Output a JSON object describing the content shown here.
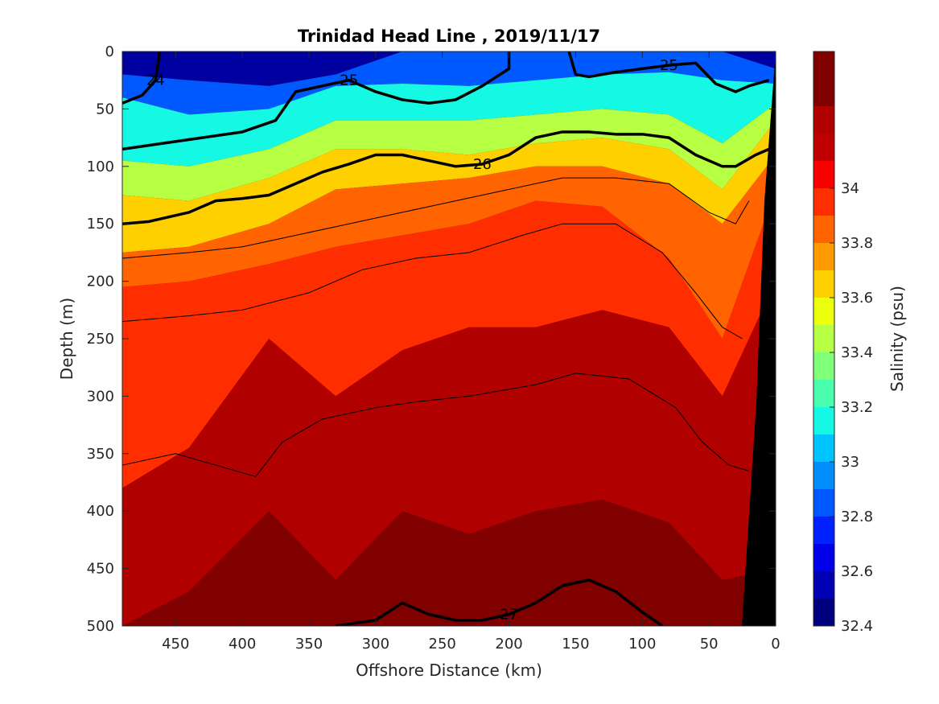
{
  "chart_data": {
    "type": "heatmap",
    "title": "Trinidad Head Line , 2019/11/17",
    "xlabel": "Offshore Distance (km)",
    "ylabel": "Depth (m)",
    "colorbar_label": "Salinity (psu)",
    "x_range": [
      490,
      0
    ],
    "x_reversed": true,
    "y_range": [
      0,
      500
    ],
    "y_reversed": true,
    "x_ticks": [
      450,
      400,
      350,
      300,
      250,
      200,
      150,
      100,
      50,
      0
    ],
    "y_ticks": [
      0,
      50,
      100,
      150,
      200,
      250,
      300,
      350,
      400,
      450,
      500
    ],
    "colorbar_range": [
      32.4,
      34.5
    ],
    "colorbar_ticks": [
      32.4,
      32.6,
      32.8,
      33,
      33.2,
      33.4,
      33.6,
      33.8,
      34
    ],
    "colorbar_levels": [
      {
        "min": 32.4,
        "max": 32.5,
        "color": "#00007f"
      },
      {
        "min": 32.5,
        "max": 32.6,
        "color": "#0000b5"
      },
      {
        "min": 32.6,
        "max": 32.7,
        "color": "#0000eb"
      },
      {
        "min": 32.7,
        "max": 32.8,
        "color": "#0022ff"
      },
      {
        "min": 32.8,
        "max": 32.9,
        "color": "#0058ff"
      },
      {
        "min": 32.9,
        "max": 33.0,
        "color": "#008eff"
      },
      {
        "min": 33.0,
        "max": 33.1,
        "color": "#00c4ff"
      },
      {
        "min": 33.1,
        "max": 33.2,
        "color": "#14f8e4"
      },
      {
        "min": 33.2,
        "max": 33.3,
        "color": "#4affae"
      },
      {
        "min": 33.3,
        "max": 33.4,
        "color": "#80ff78"
      },
      {
        "min": 33.4,
        "max": 33.5,
        "color": "#b6ff42"
      },
      {
        "min": 33.5,
        "max": 33.6,
        "color": "#ecff0c"
      },
      {
        "min": 33.6,
        "max": 33.7,
        "color": "#ffd000"
      },
      {
        "min": 33.7,
        "max": 33.8,
        "color": "#ff9a00"
      },
      {
        "min": 33.8,
        "max": 33.9,
        "color": "#ff6400"
      },
      {
        "min": 33.9,
        "max": 34.0,
        "color": "#ff2e00"
      },
      {
        "min": 34.0,
        "max": 34.1,
        "color": "#f60000"
      },
      {
        "min": 34.1,
        "max": 34.2,
        "color": "#c00000"
      },
      {
        "min": 34.2,
        "max": 34.3,
        "color": "#b00000"
      },
      {
        "min": 34.3,
        "max": 34.5,
        "color": "#800000"
      }
    ],
    "salinity_layers": [
      {
        "salinity": 32.55,
        "color": "#0000a0",
        "top": [
          0,
          0,
          0,
          0,
          0,
          0,
          0,
          0,
          0,
          0,
          0
        ],
        "bottom": [
          20,
          25,
          30,
          20,
          0,
          0,
          0,
          0,
          0,
          0,
          15
        ]
      },
      {
        "salinity": 32.85,
        "color": "#0058ff",
        "top": [
          20,
          25,
          30,
          20,
          0,
          0,
          0,
          0,
          0,
          0,
          15
        ],
        "bottom": [
          40,
          55,
          50,
          30,
          28,
          30,
          25,
          20,
          18,
          25,
          28
        ]
      },
      {
        "salinity": 33.15,
        "color": "#14f8e4",
        "top": [
          40,
          55,
          50,
          30,
          28,
          30,
          25,
          20,
          18,
          25,
          28
        ],
        "bottom": [
          95,
          100,
          85,
          60,
          60,
          60,
          55,
          50,
          55,
          80,
          45
        ]
      },
      {
        "salinity": 33.45,
        "color": "#b6ff42",
        "top": [
          95,
          100,
          85,
          60,
          60,
          60,
          55,
          50,
          55,
          80,
          45
        ],
        "bottom": [
          125,
          130,
          110,
          85,
          85,
          90,
          80,
          75,
          85,
          120,
          60
        ]
      },
      {
        "salinity": 33.65,
        "color": "#ffd000",
        "top": [
          125,
          130,
          110,
          85,
          85,
          90,
          80,
          75,
          85,
          120,
          60
        ],
        "bottom": [
          175,
          170,
          150,
          120,
          115,
          110,
          100,
          100,
          115,
          150,
          90
        ]
      },
      {
        "salinity": 33.85,
        "color": "#ff6400",
        "top": [
          175,
          170,
          150,
          120,
          115,
          110,
          100,
          100,
          115,
          150,
          90
        ],
        "bottom": [
          205,
          200,
          185,
          170,
          160,
          150,
          130,
          135,
          180,
          250,
          120
        ]
      },
      {
        "salinity": 33.95,
        "color": "#ff2e00",
        "top": [
          205,
          200,
          185,
          170,
          160,
          150,
          130,
          135,
          180,
          250,
          120
        ],
        "bottom": [
          380,
          345,
          250,
          300,
          260,
          240,
          240,
          225,
          240,
          300,
          200
        ]
      },
      {
        "salinity": 34.15,
        "color": "#b00000",
        "top": [
          380,
          345,
          250,
          300,
          260,
          240,
          240,
          225,
          240,
          300,
          200
        ],
        "bottom": [
          500,
          470,
          400,
          460,
          400,
          420,
          400,
          390,
          410,
          460,
          450
        ]
      },
      {
        "salinity": 34.35,
        "color": "#800000",
        "top": [
          500,
          470,
          400,
          460,
          400,
          420,
          400,
          390,
          410,
          460,
          450
        ],
        "bottom": [
          500,
          500,
          500,
          500,
          500,
          500,
          500,
          500,
          500,
          500,
          500
        ]
      }
    ],
    "layer_x": [
      490,
      440,
      380,
      330,
      280,
      230,
      180,
      130,
      80,
      40,
      0
    ],
    "isopycnals": [
      {
        "label": "24",
        "bold": true,
        "points": [
          [
            490,
            45
          ],
          [
            475,
            38
          ],
          [
            465,
            25
          ],
          [
            462,
            0
          ]
        ]
      },
      {
        "label": "25",
        "bold": true,
        "points": [
          [
            490,
            85
          ],
          [
            460,
            80
          ],
          [
            430,
            75
          ],
          [
            400,
            70
          ],
          [
            375,
            60
          ],
          [
            360,
            35
          ],
          [
            340,
            30
          ],
          [
            320,
            25
          ],
          [
            300,
            35
          ],
          [
            280,
            42
          ],
          [
            260,
            45
          ],
          [
            240,
            42
          ],
          [
            220,
            30
          ],
          [
            200,
            15
          ],
          [
            200,
            0
          ]
        ]
      },
      {
        "label": "25",
        "bold": true,
        "points": [
          [
            155,
            0
          ],
          [
            150,
            20
          ],
          [
            140,
            22
          ],
          [
            120,
            18
          ],
          [
            100,
            15
          ],
          [
            80,
            12
          ],
          [
            60,
            10
          ],
          [
            45,
            28
          ],
          [
            30,
            35
          ],
          [
            20,
            30
          ],
          [
            5,
            25
          ]
        ]
      },
      {
        "label": "26",
        "bold": true,
        "points": [
          [
            490,
            150
          ],
          [
            470,
            148
          ],
          [
            440,
            140
          ],
          [
            420,
            130
          ],
          [
            400,
            128
          ],
          [
            380,
            125
          ],
          [
            360,
            115
          ],
          [
            340,
            105
          ],
          [
            320,
            98
          ],
          [
            300,
            90
          ],
          [
            280,
            90
          ],
          [
            260,
            95
          ],
          [
            240,
            100
          ],
          [
            220,
            98
          ],
          [
            200,
            90
          ],
          [
            180,
            75
          ],
          [
            160,
            70
          ],
          [
            140,
            70
          ],
          [
            120,
            72
          ],
          [
            100,
            72
          ],
          [
            80,
            75
          ],
          [
            60,
            90
          ],
          [
            40,
            100
          ],
          [
            30,
            100
          ],
          [
            15,
            90
          ],
          [
            5,
            85
          ]
        ]
      },
      {
        "label": "27",
        "bold": true,
        "points": [
          [
            330,
            500
          ],
          [
            300,
            495
          ],
          [
            280,
            480
          ],
          [
            260,
            490
          ],
          [
            240,
            495
          ],
          [
            220,
            495
          ],
          [
            200,
            490
          ],
          [
            180,
            480
          ],
          [
            160,
            465
          ],
          [
            140,
            460
          ],
          [
            120,
            470
          ],
          [
            100,
            488
          ],
          [
            85,
            500
          ]
        ]
      }
    ],
    "thin_contours": [
      {
        "points": [
          [
            490,
            180
          ],
          [
            440,
            175
          ],
          [
            400,
            170
          ],
          [
            360,
            160
          ],
          [
            320,
            150
          ],
          [
            280,
            140
          ],
          [
            240,
            130
          ],
          [
            200,
            120
          ],
          [
            160,
            110
          ],
          [
            120,
            110
          ],
          [
            80,
            115
          ],
          [
            50,
            140
          ],
          [
            30,
            150
          ],
          [
            20,
            130
          ]
        ]
      },
      {
        "points": [
          [
            490,
            235
          ],
          [
            440,
            230
          ],
          [
            400,
            225
          ],
          [
            350,
            210
          ],
          [
            310,
            190
          ],
          [
            270,
            180
          ],
          [
            230,
            175
          ],
          [
            190,
            160
          ],
          [
            160,
            150
          ],
          [
            120,
            150
          ],
          [
            85,
            175
          ],
          [
            60,
            210
          ],
          [
            40,
            240
          ],
          [
            25,
            250
          ]
        ]
      },
      {
        "points": [
          [
            490,
            360
          ],
          [
            450,
            350
          ],
          [
            420,
            360
          ],
          [
            390,
            370
          ],
          [
            370,
            340
          ],
          [
            340,
            320
          ],
          [
            300,
            310
          ],
          [
            270,
            305
          ],
          [
            230,
            300
          ],
          [
            180,
            290
          ],
          [
            150,
            280
          ],
          [
            110,
            285
          ],
          [
            75,
            310
          ],
          [
            55,
            340
          ],
          [
            35,
            360
          ],
          [
            20,
            365
          ]
        ]
      }
    ]
  }
}
